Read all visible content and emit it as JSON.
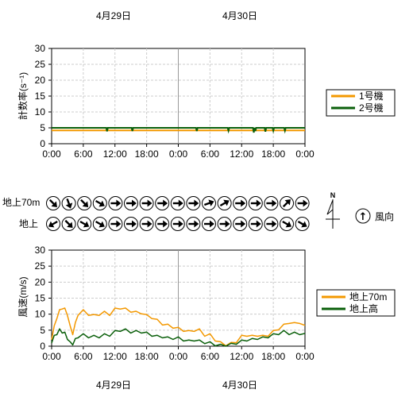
{
  "dates": {
    "day1": "4月29日",
    "day2": "4月30日"
  },
  "colors": {
    "unit1": "#f39800",
    "unit2": "#0a5f0a",
    "wind70": "#f39800",
    "windGround": "#0a5f0a",
    "grid": "#cccccc",
    "day_divider": "#999999"
  },
  "x_tick_labels": [
    "0:00",
    "6:00",
    "12:00",
    "18:00",
    "0:00",
    "6:00",
    "12:00",
    "18:00",
    "0:00"
  ],
  "direction_panel": {
    "row1_label": "地上70m",
    "row2_label": "地上",
    "north_label": "N",
    "legend_label": "風向",
    "arrow_symbol": "↑",
    "row1_directions_deg": [
      135,
      160,
      135,
      120,
      90,
      90,
      90,
      90,
      90,
      90,
      70,
      60,
      90,
      90,
      90,
      45,
      90,
      120,
      90,
      270,
      225,
      240,
      225
    ],
    "row2_directions_deg": [
      240,
      135,
      120,
      120,
      90,
      90,
      90,
      90,
      90,
      90,
      90,
      90,
      90,
      90,
      90,
      120,
      120,
      120,
      135,
      225,
      240,
      240,
      225
    ]
  },
  "chart_data": [
    {
      "type": "line",
      "ylabel": "計数率(s⁻¹)",
      "ylim": [
        0,
        30
      ],
      "yticks": [
        0,
        5,
        10,
        15,
        20,
        25,
        30
      ],
      "x_range_hours": [
        0,
        48
      ],
      "series": [
        {
          "name": "1号機",
          "color": "#f39800",
          "baseline": 4.2,
          "dips": []
        },
        {
          "name": "2号機",
          "color": "#0a5f0a",
          "baseline": 5.0,
          "dips": [
            [
              10.5,
              3.9
            ],
            [
              15.3,
              4.0
            ],
            [
              27.5,
              4.0
            ],
            [
              33.5,
              4.1
            ],
            [
              38.3,
              3.5
            ],
            [
              38.6,
              4.0
            ],
            [
              40.5,
              3.8
            ],
            [
              42.0,
              4.1
            ],
            [
              44.2,
              4.1
            ]
          ]
        }
      ]
    },
    {
      "type": "line",
      "ylabel": "風速(m/s)",
      "ylim": [
        0,
        30
      ],
      "yticks": [
        0,
        5,
        10,
        15,
        20,
        25,
        30
      ],
      "x_range_hours": [
        0,
        48
      ],
      "series": [
        {
          "name": "地上70m",
          "color": "#f39800",
          "x": [
            0,
            0.5,
            1,
            1.5,
            2,
            2.5,
            3,
            3.5,
            4,
            4.5,
            5,
            6,
            7,
            8,
            9,
            10,
            11,
            12,
            13,
            14,
            15,
            16,
            17,
            18,
            19,
            20,
            21,
            22,
            23,
            24,
            25,
            26,
            27,
            28,
            29,
            30,
            31,
            32,
            33,
            34,
            35,
            36,
            37,
            38,
            39,
            40,
            41,
            42,
            43,
            44,
            45,
            46,
            47,
            48
          ],
          "y": [
            2,
            6,
            9,
            11,
            12,
            11.5,
            10,
            6,
            4,
            7,
            10,
            11,
            10,
            9.5,
            10,
            10.5,
            10,
            11.5,
            12,
            11.5,
            11,
            10.5,
            10.5,
            9.5,
            9,
            8,
            7,
            6.5,
            6,
            5.5,
            5,
            4.5,
            5,
            5,
            3.5,
            3.5,
            2,
            1,
            0.5,
            0.8,
            1.5,
            3,
            3.5,
            3,
            3.5,
            3,
            3.5,
            4.5,
            5.5,
            6.5,
            7.5,
            7,
            7.5,
            6.5
          ]
        },
        {
          "name": "地上高",
          "color": "#0a5f0a",
          "x": [
            0,
            0.5,
            1,
            1.5,
            2,
            2.5,
            3,
            3.5,
            4,
            4.5,
            5,
            6,
            7,
            8,
            9,
            10,
            11,
            12,
            13,
            14,
            15,
            16,
            17,
            18,
            19,
            20,
            21,
            22,
            23,
            24,
            25,
            26,
            27,
            28,
            29,
            30,
            31,
            32,
            33,
            34,
            35,
            36,
            37,
            38,
            39,
            40,
            41,
            42,
            43,
            44,
            45,
            46,
            47,
            48
          ],
          "y": [
            1,
            3,
            4,
            5,
            4.5,
            4,
            2.5,
            1,
            0.8,
            2,
            3,
            3.5,
            3,
            3,
            3,
            3.5,
            3.5,
            4.5,
            5,
            5,
            4.5,
            4.5,
            4.5,
            4,
            3.5,
            3,
            3,
            2.5,
            2.5,
            2.5,
            2,
            1.5,
            2,
            1.5,
            1.2,
            1,
            0.5,
            0.2,
            0.2,
            0.5,
            1,
            1.5,
            2,
            2,
            2.5,
            2.5,
            3,
            3.5,
            4,
            4.5,
            4,
            4,
            4,
            4
          ]
        }
      ]
    }
  ]
}
